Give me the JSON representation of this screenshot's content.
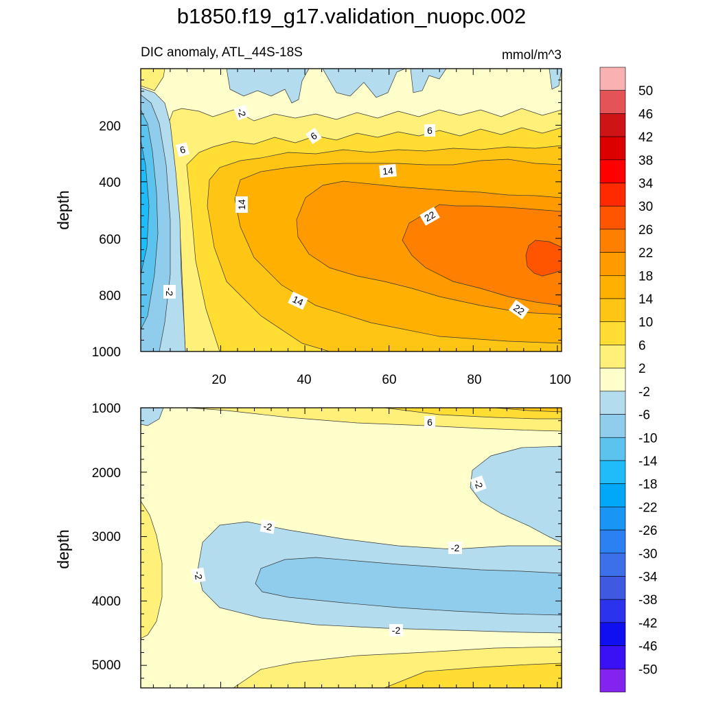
{
  "title": "b1850.f19_g17.validation_nuopc.002",
  "chart_data": {
    "type": "contour",
    "title": "b1850.f19_g17.validation_nuopc.002",
    "subtitle_left": "DIC anomaly, ATL_44S-18S",
    "subtitle_right": "mmol/m^3",
    "colorbar": {
      "labels": [
        "50",
        "46",
        "42",
        "38",
        "34",
        "30",
        "26",
        "22",
        "18",
        "14",
        "10",
        "6",
        "2",
        "-2",
        "-6",
        "-10",
        "-14",
        "-18",
        "-22",
        "-26",
        "-30",
        "-34",
        "-38",
        "-42",
        "-46",
        "-50"
      ],
      "colors": [
        "#f9b1b1",
        "#e45457",
        "#ce1414",
        "#dd0000",
        "#ff0000",
        "#ff2a00",
        "#ff5500",
        "#ff7f00",
        "#ff9b00",
        "#ffb000",
        "#ffc515",
        "#ffdd33",
        "#fff07a",
        "#ffffcc",
        "#b3dcef",
        "#90cded",
        "#5bc3ee",
        "#1fbcf9",
        "#00a8f7",
        "#1895f5",
        "#2b81f1",
        "#3b70ea",
        "#3f59e0",
        "#2b33ec",
        "#0f0ff0",
        "#3a10f5",
        "#8223ee"
      ]
    },
    "panels": [
      {
        "name": "upper",
        "xlim": [
          1,
          101
        ],
        "ylim": [
          1000,
          0
        ],
        "ylabel": "depth",
        "xticks": [
          "20",
          "40",
          "60",
          "80",
          "100"
        ],
        "yticks": [
          "200",
          "400",
          "600",
          "800",
          "1000"
        ],
        "contour_labels": [
          "-2",
          "6",
          "6",
          "6",
          "14",
          "14",
          "22",
          "14",
          "22",
          "-2"
        ]
      },
      {
        "name": "lower",
        "xlim": [
          1,
          101
        ],
        "ylim": [
          5350,
          1000
        ],
        "ylabel": "depth",
        "yticks": [
          "1000",
          "2000",
          "3000",
          "4000",
          "5000"
        ],
        "contour_labels": [
          "6",
          "-2",
          "-2",
          "-2",
          "-2",
          "-2"
        ]
      }
    ]
  }
}
